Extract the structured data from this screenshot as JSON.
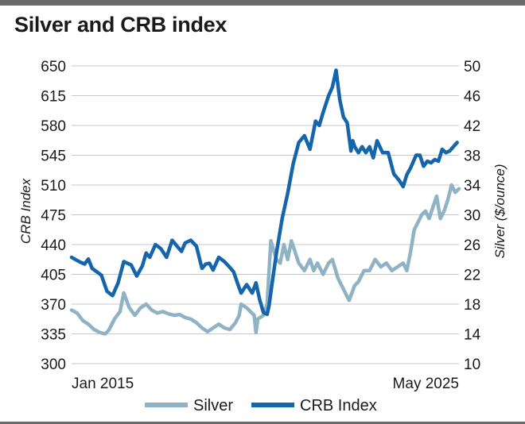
{
  "header": {
    "title": "Silver and CRB index"
  },
  "chart_data": {
    "type": "line",
    "title": "Silver and CRB index",
    "x_labels": [
      "Jan 2015",
      "May 2025"
    ],
    "x_range": [
      2015.0,
      2025.4
    ],
    "left_axis": {
      "label": "CRB Index",
      "ylim": [
        300,
        650
      ],
      "ticks": [
        300,
        335,
        370,
        405,
        440,
        475,
        510,
        545,
        580,
        615,
        650
      ]
    },
    "right_axis": {
      "label": "Silver ($/ounce)",
      "ylim": [
        10,
        50
      ],
      "ticks": [
        10,
        14,
        18,
        22,
        26,
        30,
        34,
        38,
        42,
        46,
        50
      ]
    },
    "grid": true,
    "legend": {
      "position": "bottom",
      "entries": [
        "Silver",
        "CRB Index"
      ]
    },
    "colors": {
      "silver": "#8fb3c4",
      "crb": "#1565ad",
      "grid": "#c9c9c9"
    },
    "series": [
      {
        "name": "CRB Index",
        "axis": "left",
        "x": [
          2015.0,
          2015.2,
          2015.35,
          2015.45,
          2015.55,
          2015.8,
          2015.95,
          2016.1,
          2016.25,
          2016.4,
          2016.5,
          2016.6,
          2016.75,
          2016.9,
          2017.0,
          2017.1,
          2017.25,
          2017.4,
          2017.55,
          2017.7,
          2017.85,
          2017.95,
          2018.05,
          2018.2,
          2018.35,
          2018.5,
          2018.6,
          2018.7,
          2018.8,
          2018.95,
          2019.1,
          2019.25,
          2019.35,
          2019.45,
          2019.55,
          2019.7,
          2019.85,
          2019.95,
          2020.05,
          2020.15,
          2020.25,
          2020.3,
          2020.4,
          2020.5,
          2020.65,
          2020.8,
          2020.95,
          2021.1,
          2021.25,
          2021.4,
          2021.55,
          2021.65,
          2021.75,
          2021.9,
          2022.0,
          2022.1,
          2022.2,
          2022.3,
          2022.4,
          2022.5,
          2022.55,
          2022.6,
          2022.7,
          2022.8,
          2022.9,
          2023.0,
          2023.1,
          2023.2,
          2023.35,
          2023.5,
          2023.65,
          2023.8,
          2023.9,
          2024.0,
          2024.1,
          2024.25,
          2024.35,
          2024.45,
          2024.55,
          2024.65,
          2024.75,
          2024.85,
          2024.95,
          2025.05,
          2025.15,
          2025.25,
          2025.35
        ],
        "values": [
          425,
          420,
          417,
          423,
          412,
          404,
          385,
          380,
          395,
          420,
          418,
          416,
          403,
          415,
          430,
          425,
          440,
          435,
          425,
          445,
          437,
          432,
          442,
          445,
          438,
          412,
          417,
          418,
          410,
          425,
          420,
          413,
          408,
          395,
          383,
          393,
          383,
          395,
          375,
          360,
          358,
          368,
          400,
          430,
          470,
          500,
          535,
          560,
          568,
          552,
          585,
          580,
          595,
          615,
          625,
          645,
          610,
          590,
          583,
          550,
          562,
          555,
          548,
          555,
          548,
          555,
          542,
          562,
          548,
          548,
          523,
          515,
          508,
          522,
          530,
          545,
          545,
          532,
          538,
          536,
          540,
          538,
          552,
          548,
          550,
          555,
          560
        ]
      },
      {
        "name": "Silver",
        "axis": "right",
        "x": [
          2015.0,
          2015.15,
          2015.3,
          2015.45,
          2015.6,
          2015.75,
          2015.9,
          2016.0,
          2016.15,
          2016.3,
          2016.4,
          2016.55,
          2016.7,
          2016.85,
          2017.0,
          2017.15,
          2017.3,
          2017.45,
          2017.6,
          2017.75,
          2017.9,
          2018.05,
          2018.2,
          2018.35,
          2018.5,
          2018.65,
          2018.8,
          2018.95,
          2019.1,
          2019.25,
          2019.4,
          2019.5,
          2019.55,
          2019.7,
          2019.8,
          2019.9,
          2019.95,
          2020.0,
          2020.15,
          2020.25,
          2020.35,
          2020.5,
          2020.6,
          2020.7,
          2020.8,
          2020.9,
          2021.0,
          2021.1,
          2021.25,
          2021.4,
          2021.5,
          2021.6,
          2021.75,
          2021.9,
          2022.0,
          2022.15,
          2022.3,
          2022.45,
          2022.6,
          2022.7,
          2022.85,
          2023.0,
          2023.15,
          2023.3,
          2023.45,
          2023.6,
          2023.75,
          2023.9,
          2024.0,
          2024.1,
          2024.2,
          2024.3,
          2024.4,
          2024.5,
          2024.6,
          2024.7,
          2024.8,
          2024.9,
          2025.0,
          2025.1,
          2025.2,
          2025.3,
          2025.4
        ],
        "values": [
          17.2,
          16.8,
          15.8,
          15.3,
          14.6,
          14.2,
          14.0,
          14.5,
          16.0,
          17.0,
          19.5,
          17.5,
          16.5,
          17.5,
          18.0,
          17.2,
          16.8,
          17.0,
          16.7,
          16.5,
          16.6,
          16.2,
          16.0,
          15.5,
          14.8,
          14.3,
          14.8,
          15.3,
          14.8,
          14.6,
          15.5,
          16.5,
          18.0,
          17.5,
          17.0,
          16.5,
          14.2,
          16.0,
          16.5,
          18.0,
          26.5,
          24.0,
          23.5,
          26.0,
          24.0,
          26.5,
          25.0,
          23.5,
          22.5,
          24.0,
          22.5,
          23.5,
          22.0,
          23.5,
          24.0,
          21.5,
          20.0,
          18.5,
          20.5,
          21.0,
          22.5,
          22.5,
          24.0,
          23.0,
          23.5,
          22.5,
          23.0,
          23.5,
          22.5,
          25.0,
          28.0,
          29.0,
          30.0,
          30.5,
          29.5,
          31.0,
          32.5,
          29.5,
          30.5,
          32.0,
          34.0,
          33.0,
          33.5
        ]
      }
    ]
  }
}
